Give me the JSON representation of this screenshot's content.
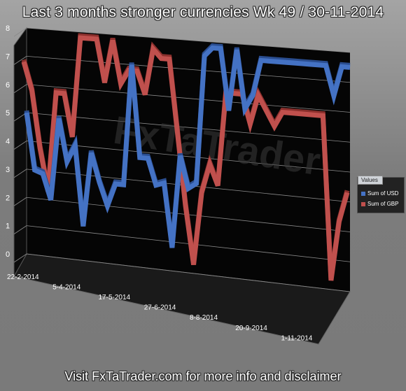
{
  "title": "Last 3 months stronger currencies Wk 49 / 30-11-2014",
  "footer": "Visit FxTaTrader.com for more info and disclaimer",
  "watermark": "FxTaTrader",
  "legend": {
    "title": "Values",
    "items": [
      {
        "label": "Sum of USD",
        "color": "#4472c4"
      },
      {
        "label": "Sum of GBP",
        "color": "#c0504d"
      }
    ]
  },
  "chart_data": {
    "type": "line",
    "title": "Last 3 months stronger currencies Wk 49 / 30-11-2014",
    "xlabel": "",
    "ylabel": "",
    "ylim": [
      0,
      8
    ],
    "yticks": [
      "0",
      "1",
      "2",
      "3",
      "4",
      "5",
      "6",
      "7",
      "8"
    ],
    "x_tick_labels": [
      "22-2-2014",
      "5-4-2014",
      "17-5-2014",
      "27-6-2014",
      "8-8-2014",
      "20-9-2014",
      "1-11-2014"
    ],
    "x_tick_index": [
      0,
      6,
      12,
      18,
      24,
      30,
      36
    ],
    "grid": true,
    "legend_position": "right",
    "style": "3d",
    "series": [
      {
        "name": "Sum of USD",
        "color": "#4472c4",
        "values": [
          5,
          3,
          2.9,
          2,
          4.9,
          3.4,
          4,
          1.2,
          3.8,
          2.8,
          2,
          2.8,
          2.8,
          7,
          3.8,
          3.8,
          2.9,
          3,
          0.8,
          4,
          2.9,
          3.1,
          7.5,
          7.8,
          7.8,
          5.7,
          7.8,
          5.8,
          6.3,
          7.5,
          7.5,
          7.5,
          7.5,
          7.5,
          7.5,
          7.5,
          7.5,
          7.5,
          6.5,
          7.5,
          7.5
        ]
      },
      {
        "name": "Sum of GBP",
        "color": "#c0504d",
        "values": [
          7,
          6,
          4,
          2.5,
          6,
          6,
          4.5,
          8,
          8,
          8,
          6.5,
          8,
          6.5,
          7,
          7,
          6.2,
          7.8,
          7.5,
          7.5,
          5,
          2.5,
          0.5,
          3,
          4,
          3.3,
          6.5,
          6.5,
          6.5,
          5.5,
          6.5,
          6,
          5.5,
          6,
          6,
          6,
          6,
          6,
          6,
          0.5,
          2.5,
          3.5
        ]
      }
    ]
  }
}
